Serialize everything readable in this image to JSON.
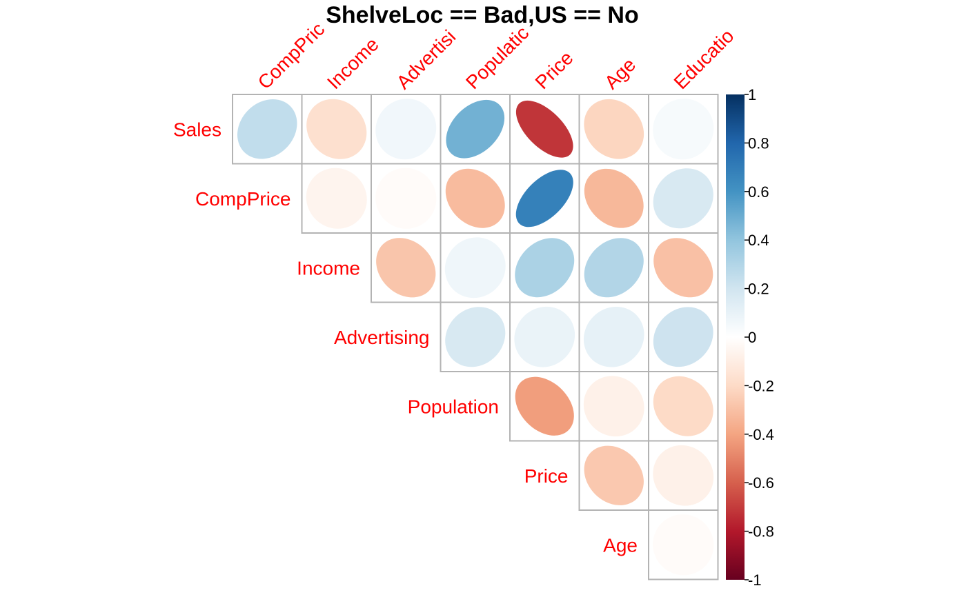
{
  "chart_data": {
    "type": "heatmap",
    "title": "ShelveLoc == Bad,US == No",
    "row_labels": [
      "Sales",
      "CompPrice",
      "Income",
      "Advertising",
      "Population",
      "Price",
      "Age"
    ],
    "col_labels": [
      "CompPrice",
      "Income",
      "Advertising",
      "Population",
      "Price",
      "Age",
      "Education"
    ],
    "col_labels_shown": [
      "CompPric",
      "Income",
      "Advertisi",
      "Populatic",
      "Price",
      "Age",
      "Educatio"
    ],
    "layout": "upper-triangle",
    "method": "ellipse",
    "matrix": [
      [
        0.25,
        -0.17,
        0.06,
        0.48,
        -0.72,
        -0.22,
        0.04
      ],
      [
        null,
        -0.06,
        -0.02,
        -0.32,
        0.68,
        -0.33,
        0.17
      ],
      [
        null,
        null,
        -0.28,
        0.07,
        0.32,
        0.3,
        -0.3
      ],
      [
        null,
        null,
        null,
        0.17,
        0.09,
        0.11,
        0.21
      ],
      [
        null,
        null,
        null,
        null,
        -0.42,
        -0.08,
        -0.2
      ],
      [
        null,
        null,
        null,
        null,
        null,
        -0.27,
        -0.08
      ],
      [
        null,
        null,
        null,
        null,
        null,
        null,
        -0.02
      ]
    ],
    "colorbar": {
      "range": [
        -1,
        1
      ],
      "ticks": [
        "1",
        "0.8",
        "0.6",
        "0.4",
        "0.2",
        "0",
        "-0.2",
        "-0.4",
        "-0.6",
        "-0.8",
        "-1"
      ],
      "stops": [
        "#67001F",
        "#B2182B",
        "#D6604D",
        "#F4A582",
        "#FDDBC7",
        "#FFFFFF",
        "#D1E5F0",
        "#92C5DE",
        "#4393C3",
        "#2166AC",
        "#053061"
      ]
    }
  }
}
